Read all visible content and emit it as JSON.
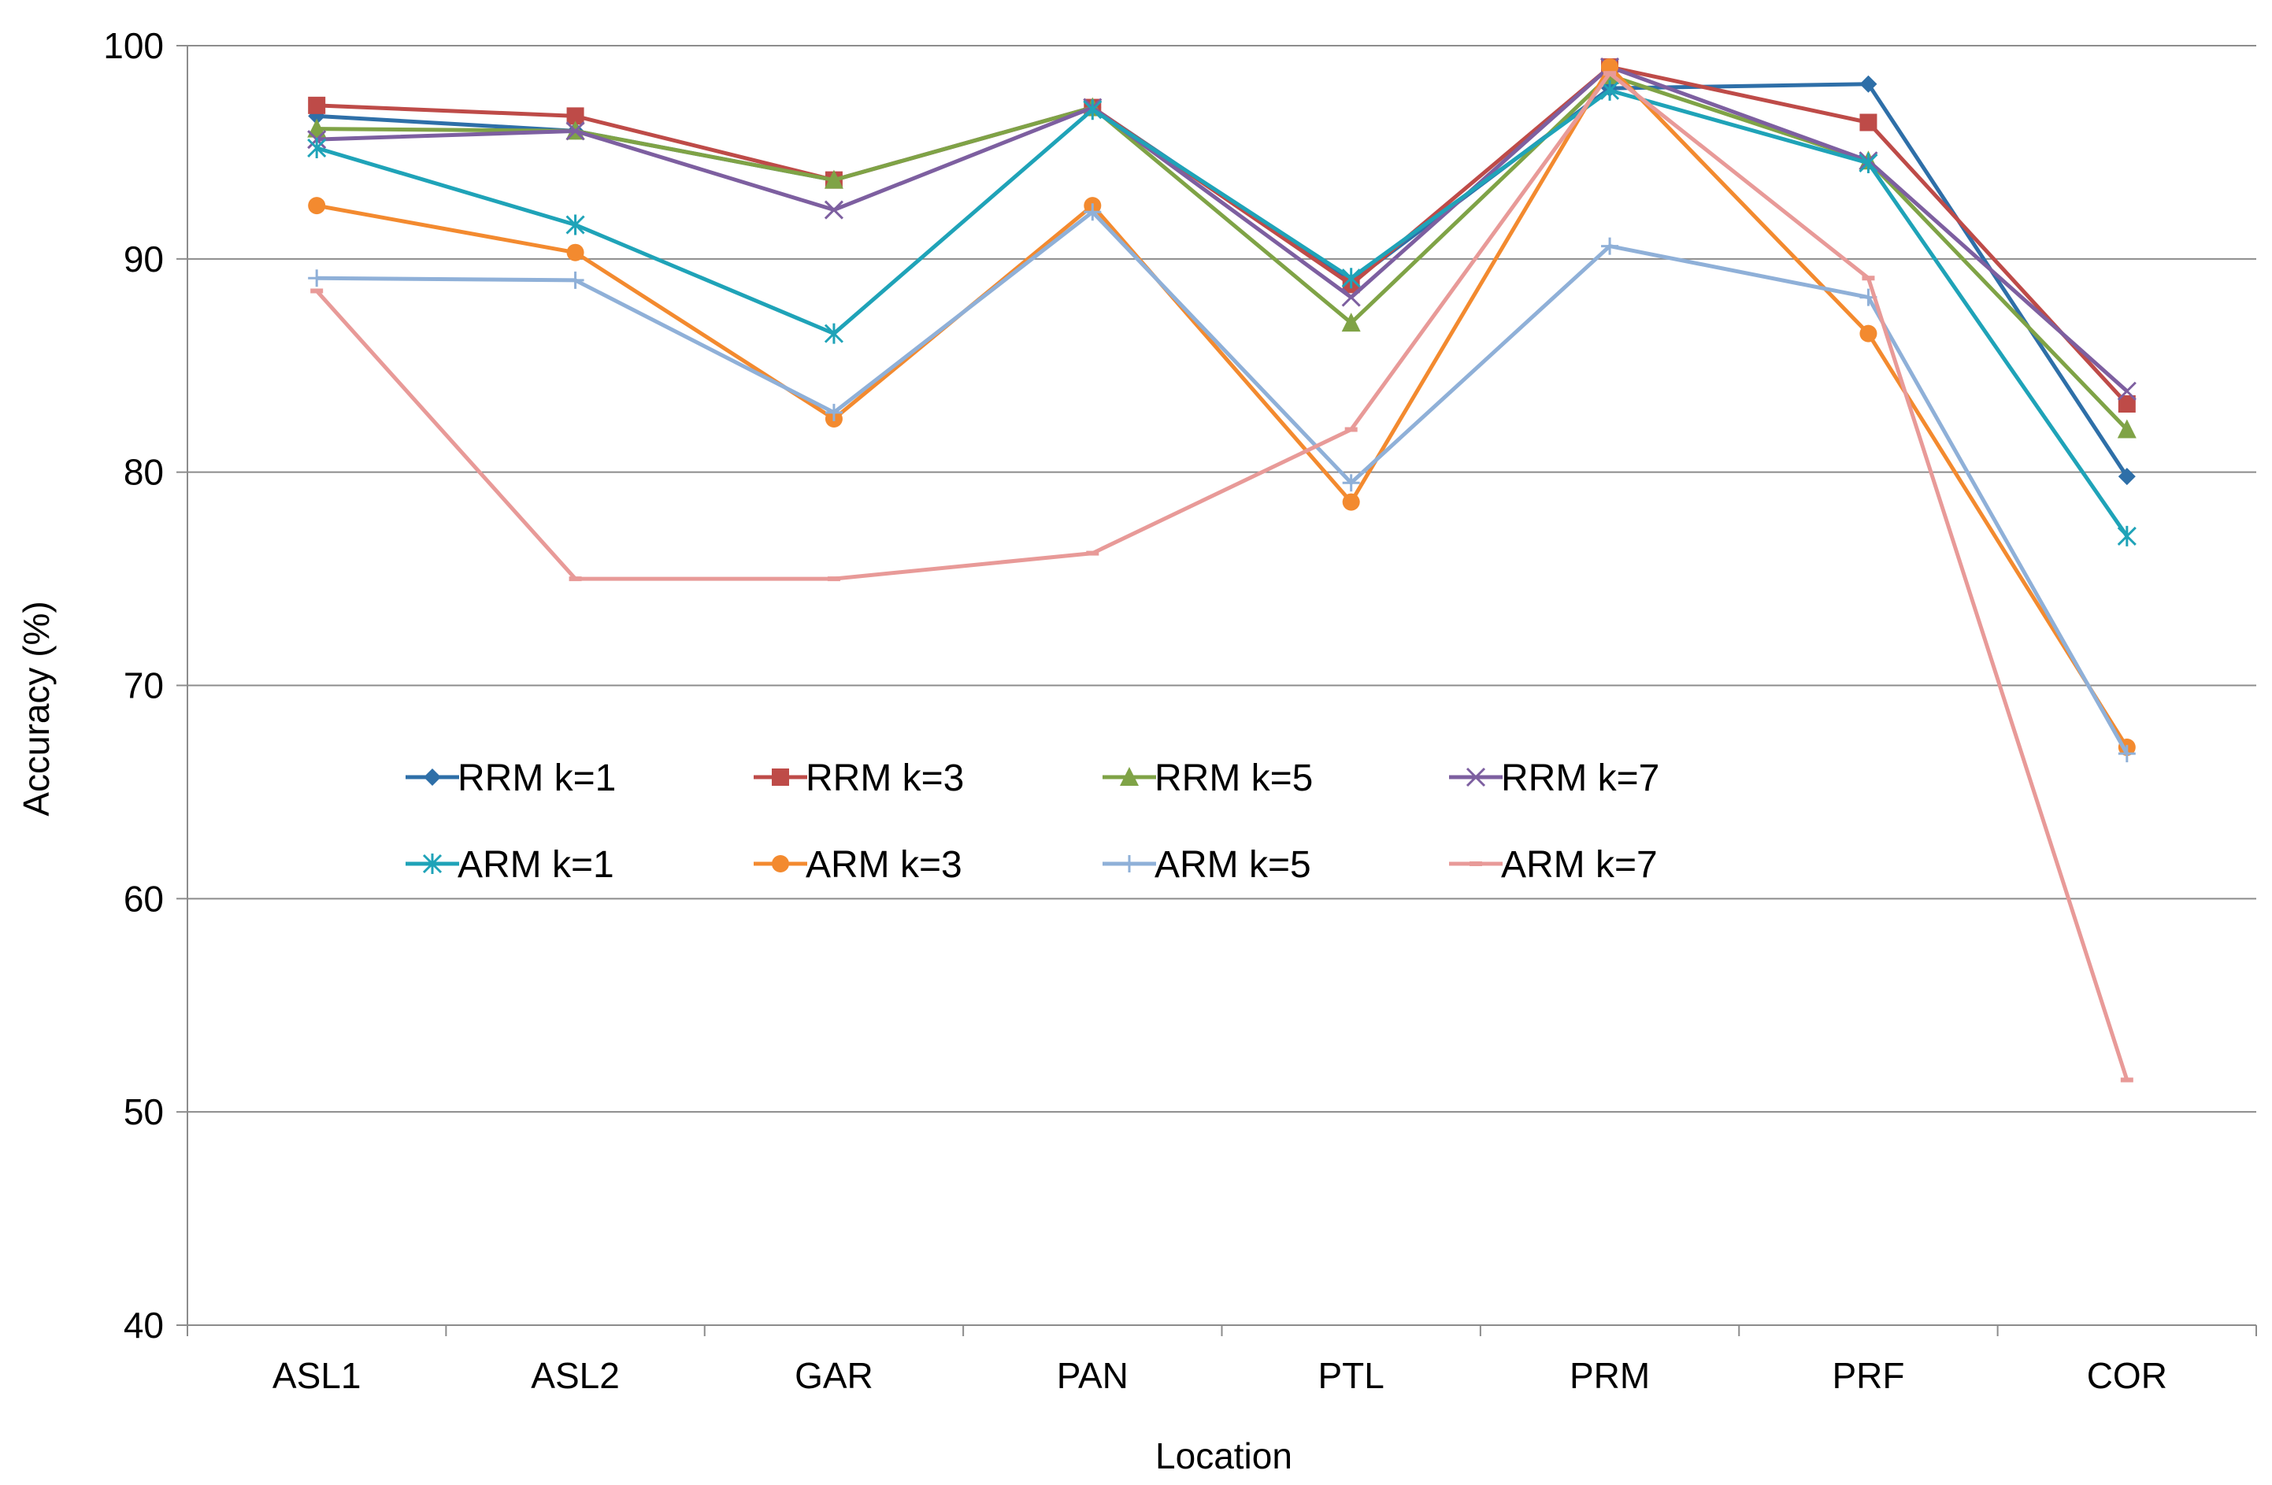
{
  "chart_data": {
    "type": "line",
    "title": "",
    "xlabel": "Location",
    "ylabel": "Accuracy (%)",
    "ylim": [
      40,
      100
    ],
    "yticks": [
      40,
      50,
      60,
      70,
      80,
      90,
      100
    ],
    "ytick_labels": [
      "40",
      "50",
      "60",
      "70",
      "80",
      "90",
      "100"
    ],
    "grid": "horizontal",
    "legend_position": "center-left",
    "categories": [
      "ASL1",
      "ASL2",
      "GAR",
      "PAN",
      "PTL",
      "PRM",
      "PRF",
      "COR"
    ],
    "series": [
      {
        "name": "RRM k=1",
        "color": "#2E6FA8",
        "marker": "diamond",
        "values": [
          96.7,
          96.0,
          93.7,
          97.1,
          88.9,
          98.0,
          98.2,
          79.8
        ]
      },
      {
        "name": "RRM k=3",
        "color": "#BE4B48",
        "marker": "square",
        "values": [
          97.2,
          96.7,
          93.7,
          97.1,
          88.8,
          99.0,
          96.4,
          83.2
        ]
      },
      {
        "name": "RRM k=5",
        "color": "#7FA346",
        "marker": "triangle",
        "values": [
          96.1,
          96.0,
          93.7,
          97.1,
          87.0,
          98.6,
          94.6,
          82.0
        ]
      },
      {
        "name": "RRM k=7",
        "color": "#7D5FA0",
        "marker": "x",
        "values": [
          95.6,
          96.0,
          92.3,
          97.1,
          88.2,
          99.0,
          94.6,
          83.8
        ]
      },
      {
        "name": "ARM k=1",
        "color": "#1FA3B8",
        "marker": "star",
        "values": [
          95.2,
          91.6,
          86.5,
          97.0,
          89.1,
          97.9,
          94.5,
          77.0
        ]
      },
      {
        "name": "ARM k=3",
        "color": "#F38A2F",
        "marker": "circle",
        "values": [
          92.5,
          90.3,
          82.5,
          92.5,
          78.6,
          99.0,
          86.5,
          67.1
        ]
      },
      {
        "name": "ARM k=5",
        "color": "#8FB0D8",
        "marker": "plus",
        "values": [
          89.1,
          89.0,
          82.8,
          92.2,
          79.5,
          90.6,
          88.2,
          66.8
        ]
      },
      {
        "name": "ARM k=7",
        "color": "#E89A98",
        "marker": "dash",
        "values": [
          88.5,
          75.0,
          75.0,
          76.2,
          82.0,
          98.7,
          89.1,
          51.5
        ]
      }
    ]
  }
}
